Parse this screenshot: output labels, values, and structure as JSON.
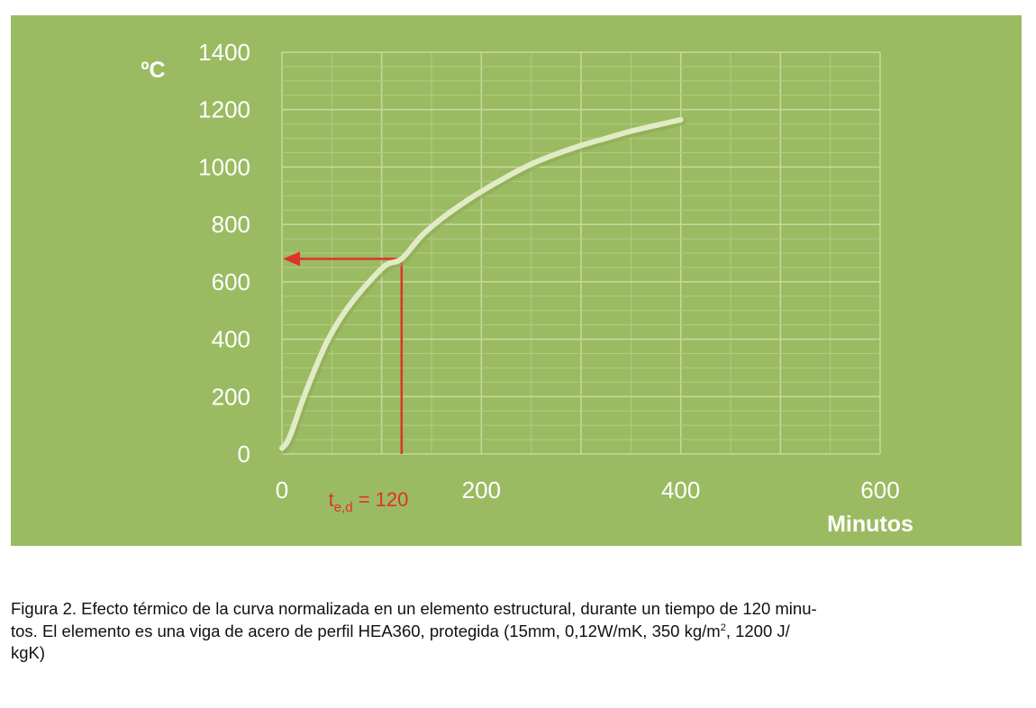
{
  "colors": {
    "panel": "#9bbb62",
    "grid_major": "#c4d99a",
    "grid_minor": "#b2cc80",
    "curve": "#e1ecc6",
    "curve_shadow": "#8aa854",
    "axis_text": "#ffffff",
    "annotation": "#e0322b"
  },
  "chart_data": {
    "type": "line",
    "ylabel": "ºC",
    "xlabel": "Minutos",
    "xlim": [
      0,
      600
    ],
    "ylim": [
      0,
      1400
    ],
    "x_ticks": [
      "0",
      "200",
      "400",
      "600"
    ],
    "y_ticks": [
      "0",
      "200",
      "400",
      "600",
      "800",
      "1000",
      "1200",
      "1400"
    ],
    "x_minor_step": 50,
    "y_minor_step": 50,
    "grid": true,
    "series": [
      {
        "x": [
          0,
          5,
          10,
          15,
          20,
          30,
          45,
          60,
          75,
          90,
          105,
          120,
          140,
          160,
          180,
          200,
          225,
          250,
          275,
          300,
          325,
          350,
          375,
          400
        ],
        "y": [
          20,
          40,
          80,
          130,
          180,
          270,
          390,
          480,
          550,
          610,
          660,
          680,
          760,
          820,
          870,
          915,
          965,
          1010,
          1045,
          1075,
          1100,
          1125,
          1145,
          1165
        ]
      }
    ],
    "annotations": {
      "marker_label_main": "t",
      "marker_label_sub": "e,d",
      "marker_label_value": " = 120",
      "marker_x": 120,
      "marker_y": 680
    }
  },
  "caption": {
    "line1": "Figura 2. Efecto térmico de la curva normalizada en un elemento estructural, durante un tiempo de 120 minu-",
    "line2_a": "tos. El elemento es una viga de acero de perfil HEA360, protegida (15mm, 0,12W/mK, 350 kg/m",
    "line2_sup": "2",
    "line2_b": ", 1200 J/",
    "line3": "kgK)"
  }
}
